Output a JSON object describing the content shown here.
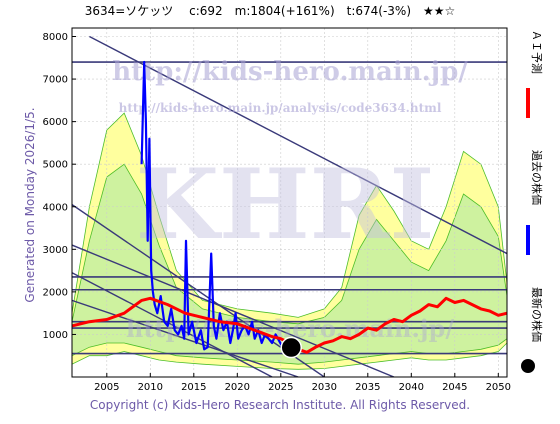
{
  "header": {
    "title": "3634=ソケッツ　 c:692　m:1804(+161%)　t:674(-3%)　★★☆"
  },
  "side_label": "Generated on Monday 2026/1/5.",
  "watermarks": {
    "url": "http://kids-hero.main.jp/",
    "analysis_url": "http://kids-hero.main.jp/analysis/code3634.html",
    "logo": "KHRI"
  },
  "copyright": "Copyright (c) Kids-Hero Research Institute. All Rights Reserved.",
  "legend": [
    {
      "label": "ＡＩ予測",
      "color": "#ff0000"
    },
    {
      "label": "過去の株価",
      "color": "#0000ff"
    },
    {
      "label": "最新の株価",
      "color": "#000000"
    }
  ],
  "chart_data": {
    "type": "line",
    "xlim": [
      2001,
      2051
    ],
    "ylim": [
      0,
      8200
    ],
    "x_ticks": [
      2005,
      2010,
      2015,
      2020,
      2025,
      2030,
      2035,
      2040,
      2045,
      2050
    ],
    "y_ticks": [
      1000,
      2000,
      3000,
      4000,
      5000,
      6000,
      7000,
      8000
    ],
    "grid": true,
    "horizontal_lines": [
      7400,
      2350,
      2050,
      1300,
      1150,
      550
    ],
    "trend_lines": [
      {
        "from": [
          2003,
          8000
        ],
        "to": [
          2051,
          2900
        ]
      },
      {
        "from": [
          2001,
          4050
        ],
        "to": [
          2030,
          0
        ]
      },
      {
        "from": [
          2001,
          3100
        ],
        "to": [
          2038,
          0
        ]
      },
      {
        "from": [
          2001,
          2450
        ],
        "to": [
          2024,
          0
        ]
      },
      {
        "from": [
          2001,
          1800
        ],
        "to": [
          2027,
          0
        ]
      }
    ],
    "series": [
      {
        "key": "past",
        "color": "#0000ff",
        "x": [
          2009.0,
          2009.3,
          2009.5,
          2009.7,
          2009.9,
          2010.1,
          2010.3,
          2010.5,
          2010.8,
          2011.2,
          2011.6,
          2012.0,
          2012.4,
          2012.8,
          2013.2,
          2013.6,
          2013.9,
          2014.1,
          2014.4,
          2014.8,
          2015.3,
          2015.8,
          2016.2,
          2016.6,
          2017.0,
          2017.3,
          2017.6,
          2018.0,
          2018.4,
          2018.8,
          2019.2,
          2019.5,
          2019.8,
          2020.1,
          2020.5,
          2020.9,
          2021.3,
          2021.7,
          2022.0,
          2022.4,
          2022.8,
          2023.2,
          2023.6,
          2024.0,
          2024.4,
          2024.8,
          2025.2
        ],
        "values": [
          5000,
          7400,
          6000,
          3200,
          5600,
          2500,
          2000,
          1700,
          1500,
          1900,
          1300,
          1200,
          1600,
          1100,
          1000,
          1200,
          900,
          3200,
          1000,
          1300,
          800,
          1100,
          650,
          700,
          2900,
          1200,
          900,
          1500,
          1100,
          1300,
          800,
          1100,
          1500,
          900,
          1100,
          1200,
          1000,
          1300,
          900,
          1100,
          800,
          1000,
          900,
          800,
          1000,
          850,
          700
        ]
      },
      {
        "key": "ai",
        "color": "#ff0000",
        "x": [
          2001,
          2003,
          2005,
          2007,
          2009,
          2010,
          2012,
          2014,
          2016,
          2018,
          2020,
          2022,
          2024,
          2025,
          2026,
          2027,
          2028,
          2029,
          2030,
          2031,
          2032,
          2033,
          2034,
          2035,
          2036,
          2037,
          2038,
          2039,
          2040,
          2041,
          2042,
          2043,
          2044,
          2045,
          2046,
          2047,
          2048,
          2049,
          2050,
          2051
        ],
        "values": [
          1200,
          1300,
          1350,
          1500,
          1800,
          1850,
          1700,
          1500,
          1400,
          1300,
          1250,
          1100,
          950,
          900,
          800,
          650,
          580,
          700,
          800,
          850,
          950,
          900,
          1000,
          1150,
          1100,
          1250,
          1350,
          1300,
          1450,
          1550,
          1700,
          1650,
          1850,
          1750,
          1800,
          1700,
          1600,
          1550,
          1450,
          1500
        ]
      }
    ],
    "latest_point": {
      "x": 2026.2,
      "y": 692
    },
    "bands": [
      {
        "color": "#ffff99",
        "x": [
          2001,
          2003,
          2005,
          2007,
          2009,
          2011,
          2013,
          2016,
          2020,
          2024,
          2027,
          2030,
          2032,
          2034,
          2036,
          2038,
          2040,
          2042,
          2044,
          2046,
          2048,
          2050,
          2051
        ],
        "upper": [
          1500,
          4000,
          5800,
          6200,
          5200,
          3800,
          2500,
          1800,
          1600,
          1500,
          1400,
          1600,
          2100,
          3800,
          4500,
          3900,
          3200,
          3000,
          4000,
          5300,
          5000,
          4000,
          2200
        ],
        "lower": [
          300,
          500,
          500,
          600,
          500,
          400,
          350,
          300,
          250,
          200,
          180,
          200,
          250,
          300,
          350,
          400,
          450,
          400,
          400,
          450,
          500,
          600,
          800
        ]
      },
      {
        "color": "#ccf2a0",
        "x": [
          2001,
          2003,
          2005,
          2007,
          2009,
          2011,
          2013,
          2016,
          2020,
          2024,
          2027,
          2030,
          2032,
          2034,
          2036,
          2038,
          2040,
          2042,
          2044,
          2046,
          2048,
          2050,
          2051
        ],
        "upper": [
          1300,
          3200,
          4700,
          5000,
          4300,
          3100,
          2100,
          1600,
          1400,
          1300,
          1250,
          1400,
          1800,
          3000,
          3700,
          3200,
          2700,
          2500,
          3200,
          4300,
          4000,
          3300,
          1900
        ],
        "lower": [
          500,
          700,
          800,
          800,
          700,
          600,
          500,
          450,
          400,
          350,
          300,
          350,
          400,
          450,
          500,
          550,
          600,
          550,
          550,
          600,
          650,
          750,
          900
        ]
      }
    ]
  }
}
